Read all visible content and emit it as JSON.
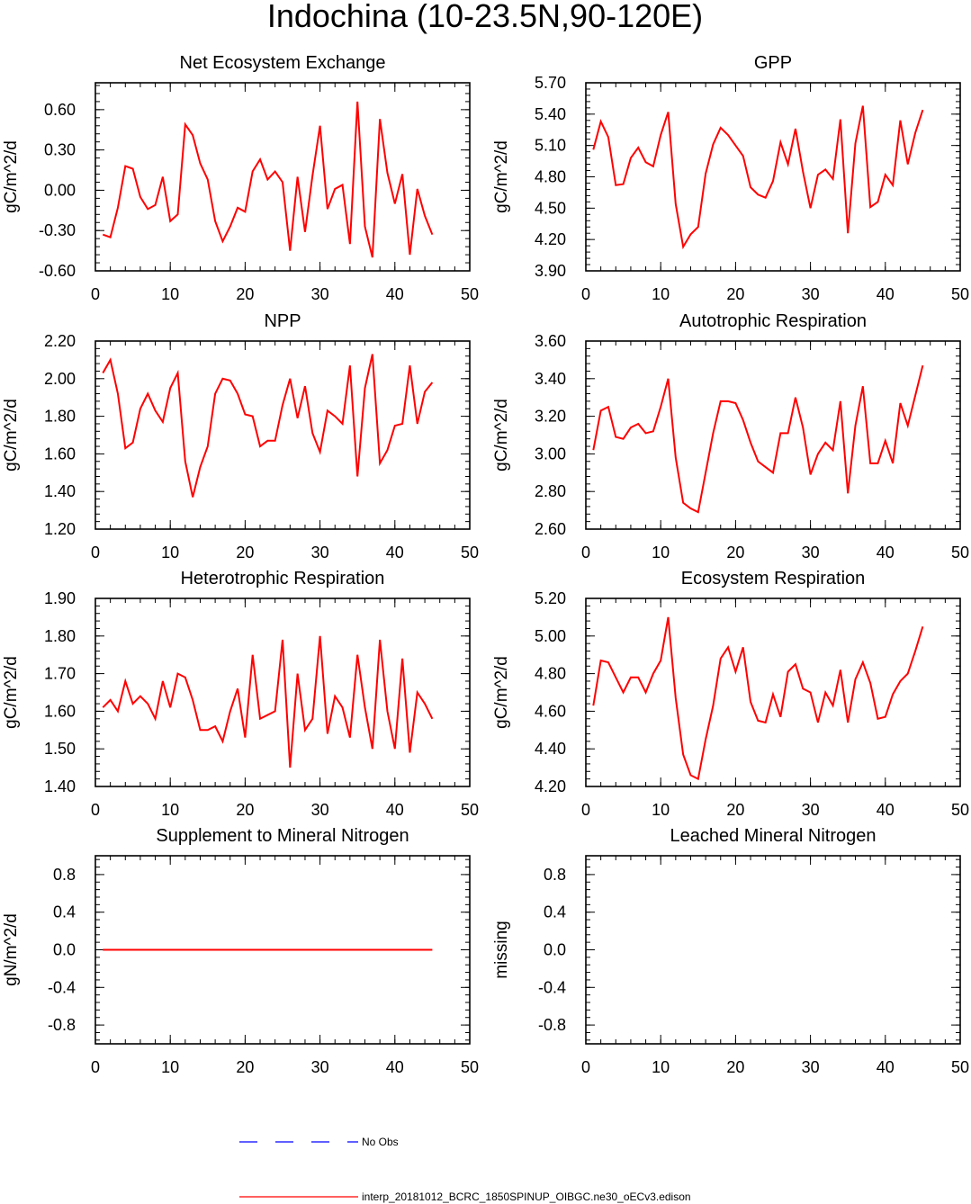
{
  "page_title": "Indochina (10-23.5N,90-120E)",
  "legend": {
    "obs_label": "No Obs",
    "obs_color": "#0000ff",
    "model_label": "interp_20181012_BCRC_1850SPINUP_OIBGC.ne30_oECv3.edison",
    "model_color": "#ff0000"
  },
  "chart_data": [
    {
      "type": "line",
      "title": "Net Ecosystem Exchange",
      "ylabel": "gC/m^2/d",
      "xlim": [
        0,
        50
      ],
      "ylim": [
        -0.6,
        0.8
      ],
      "xticks": [
        0,
        10,
        20,
        30,
        40,
        50
      ],
      "yticks": [
        -0.6,
        -0.3,
        0.0,
        0.3,
        0.6
      ],
      "yticklabels": [
        "-0.60",
        "-0.30",
        "0.00",
        "0.30",
        "0.60"
      ],
      "series": [
        {
          "values": [
            -0.33,
            -0.35,
            -0.13,
            0.18,
            0.16,
            -0.05,
            -0.14,
            -0.11,
            0.1,
            -0.23,
            -0.18,
            0.49,
            0.41,
            0.2,
            0.08,
            -0.23,
            -0.38,
            -0.27,
            -0.13,
            -0.16,
            0.14,
            0.23,
            0.08,
            0.14,
            0.06,
            -0.45,
            0.1,
            -0.31,
            0.11,
            0.48,
            -0.14,
            0.01,
            0.04,
            -0.4,
            0.66,
            -0.27,
            -0.5,
            0.53,
            0.13,
            -0.1,
            0.12,
            -0.48,
            0.01,
            -0.19,
            -0.33
          ]
        }
      ]
    },
    {
      "type": "line",
      "title": "GPP",
      "ylabel": "gC/m^2/d",
      "xlim": [
        0,
        50
      ],
      "ylim": [
        3.9,
        5.7
      ],
      "xticks": [
        0,
        10,
        20,
        30,
        40,
        50
      ],
      "yticks": [
        3.9,
        4.2,
        4.5,
        4.8,
        5.1,
        5.4,
        5.7
      ],
      "yticklabels": [
        "3.90",
        "4.20",
        "4.50",
        "4.80",
        "5.10",
        "5.40",
        "5.70"
      ],
      "series": [
        {
          "values": [
            5.06,
            5.33,
            5.18,
            4.72,
            4.73,
            4.98,
            5.08,
            4.94,
            4.9,
            5.2,
            5.42,
            4.54,
            4.13,
            4.25,
            4.32,
            4.83,
            5.11,
            5.27,
            5.2,
            5.1,
            5.0,
            4.7,
            4.63,
            4.6,
            4.76,
            5.13,
            4.92,
            5.26,
            4.85,
            4.5,
            4.82,
            4.87,
            4.78,
            5.35,
            4.26,
            5.12,
            5.48,
            4.51,
            4.56,
            4.82,
            4.72,
            5.34,
            4.92,
            5.22,
            5.44
          ]
        }
      ]
    },
    {
      "type": "line",
      "title": "NPP",
      "ylabel": "gC/m^2/d",
      "xlim": [
        0,
        50
      ],
      "ylim": [
        1.2,
        2.2
      ],
      "xticks": [
        0,
        10,
        20,
        30,
        40,
        50
      ],
      "yticks": [
        1.2,
        1.4,
        1.6,
        1.8,
        2.0,
        2.2
      ],
      "yticklabels": [
        "1.20",
        "1.40",
        "1.60",
        "1.80",
        "2.00",
        "2.20"
      ],
      "series": [
        {
          "values": [
            2.03,
            2.1,
            1.92,
            1.63,
            1.66,
            1.84,
            1.92,
            1.83,
            1.77,
            1.95,
            2.03,
            1.56,
            1.37,
            1.53,
            1.64,
            1.92,
            2.0,
            1.99,
            1.92,
            1.81,
            1.8,
            1.64,
            1.67,
            1.67,
            1.86,
            2.0,
            1.79,
            1.96,
            1.71,
            1.61,
            1.83,
            1.8,
            1.76,
            2.07,
            1.48,
            1.95,
            2.13,
            1.55,
            1.62,
            1.75,
            1.76,
            2.07,
            1.76,
            1.93,
            1.98
          ]
        }
      ]
    },
    {
      "type": "line",
      "title": "Autotrophic Respiration",
      "ylabel": "gC/m^2/d",
      "xlim": [
        0,
        50
      ],
      "ylim": [
        2.6,
        3.6
      ],
      "xticks": [
        0,
        10,
        20,
        30,
        40,
        50
      ],
      "yticks": [
        2.6,
        2.8,
        3.0,
        3.2,
        3.4,
        3.6
      ],
      "yticklabels": [
        "2.60",
        "2.80",
        "3.00",
        "3.20",
        "3.40",
        "3.60"
      ],
      "series": [
        {
          "values": [
            3.02,
            3.23,
            3.25,
            3.09,
            3.08,
            3.14,
            3.16,
            3.11,
            3.12,
            3.25,
            3.4,
            2.98,
            2.74,
            2.71,
            2.69,
            2.9,
            3.11,
            3.28,
            3.28,
            3.27,
            3.18,
            3.06,
            2.96,
            2.93,
            2.9,
            3.11,
            3.11,
            3.3,
            3.14,
            2.89,
            3.0,
            3.06,
            3.02,
            3.28,
            2.79,
            3.15,
            3.36,
            2.95,
            2.95,
            3.07,
            2.95,
            3.27,
            3.15,
            3.31,
            3.47
          ]
        }
      ]
    },
    {
      "type": "line",
      "title": "Heterotrophic Respiration",
      "ylabel": "gC/m^2/d",
      "xlim": [
        0,
        50
      ],
      "ylim": [
        1.4,
        1.9
      ],
      "xticks": [
        0,
        10,
        20,
        30,
        40,
        50
      ],
      "yticks": [
        1.4,
        1.5,
        1.6,
        1.7,
        1.8,
        1.9
      ],
      "yticklabels": [
        "1.40",
        "1.50",
        "1.60",
        "1.70",
        "1.80",
        "1.90"
      ],
      "series": [
        {
          "values": [
            1.61,
            1.63,
            1.6,
            1.68,
            1.62,
            1.64,
            1.62,
            1.58,
            1.68,
            1.61,
            1.7,
            1.69,
            1.63,
            1.55,
            1.55,
            1.56,
            1.52,
            1.6,
            1.66,
            1.53,
            1.75,
            1.58,
            1.59,
            1.6,
            1.79,
            1.45,
            1.7,
            1.55,
            1.58,
            1.8,
            1.54,
            1.64,
            1.61,
            1.53,
            1.75,
            1.61,
            1.5,
            1.79,
            1.6,
            1.5,
            1.74,
            1.49,
            1.65,
            1.62,
            1.58
          ]
        }
      ]
    },
    {
      "type": "line",
      "title": "Ecosystem Respiration",
      "ylabel": "gC/m^2/d",
      "xlim": [
        0,
        50
      ],
      "ylim": [
        4.2,
        5.2
      ],
      "xticks": [
        0,
        10,
        20,
        30,
        40,
        50
      ],
      "yticks": [
        4.2,
        4.4,
        4.6,
        4.8,
        5.0,
        5.2
      ],
      "yticklabels": [
        "4.20",
        "4.40",
        "4.60",
        "4.80",
        "5.00",
        "5.20"
      ],
      "series": [
        {
          "values": [
            4.63,
            4.87,
            4.86,
            4.78,
            4.7,
            4.78,
            4.78,
            4.7,
            4.8,
            4.87,
            5.1,
            4.67,
            4.37,
            4.26,
            4.24,
            4.45,
            4.63,
            4.88,
            4.94,
            4.81,
            4.94,
            4.65,
            4.55,
            4.54,
            4.69,
            4.57,
            4.81,
            4.85,
            4.72,
            4.7,
            4.54,
            4.7,
            4.63,
            4.82,
            4.54,
            4.77,
            4.86,
            4.75,
            4.56,
            4.57,
            4.69,
            4.76,
            4.8,
            4.92,
            5.05
          ]
        }
      ]
    },
    {
      "type": "line",
      "title": "Supplement to Mineral Nitrogen",
      "ylabel": "gN/m^2/d",
      "xlim": [
        0,
        50
      ],
      "ylim": [
        -1.0,
        1.0
      ],
      "xticks": [
        0,
        10,
        20,
        30,
        40,
        50
      ],
      "yticks": [
        -0.8,
        -0.4,
        0.0,
        0.4,
        0.8
      ],
      "yticklabels": [
        "-0.8",
        "-0.4",
        "0.0",
        "0.4",
        "0.8"
      ],
      "series": [
        {
          "values": [
            0,
            0,
            0,
            0,
            0,
            0,
            0,
            0,
            0,
            0,
            0,
            0,
            0,
            0,
            0,
            0,
            0,
            0,
            0,
            0,
            0,
            0,
            0,
            0,
            0,
            0,
            0,
            0,
            0,
            0,
            0,
            0,
            0,
            0,
            0,
            0,
            0,
            0,
            0,
            0,
            0,
            0,
            0,
            0,
            0
          ]
        }
      ]
    },
    {
      "type": "line",
      "title": "Leached Mineral Nitrogen",
      "ylabel": "missing",
      "xlim": [
        0,
        50
      ],
      "ylim": [
        -1.0,
        1.0
      ],
      "xticks": [
        0,
        10,
        20,
        30,
        40,
        50
      ],
      "yticks": [
        -0.8,
        -0.4,
        0.0,
        0.4,
        0.8
      ],
      "yticklabels": [
        "-0.8",
        "-0.4",
        "0.0",
        "0.4",
        "0.8"
      ],
      "series": []
    }
  ]
}
